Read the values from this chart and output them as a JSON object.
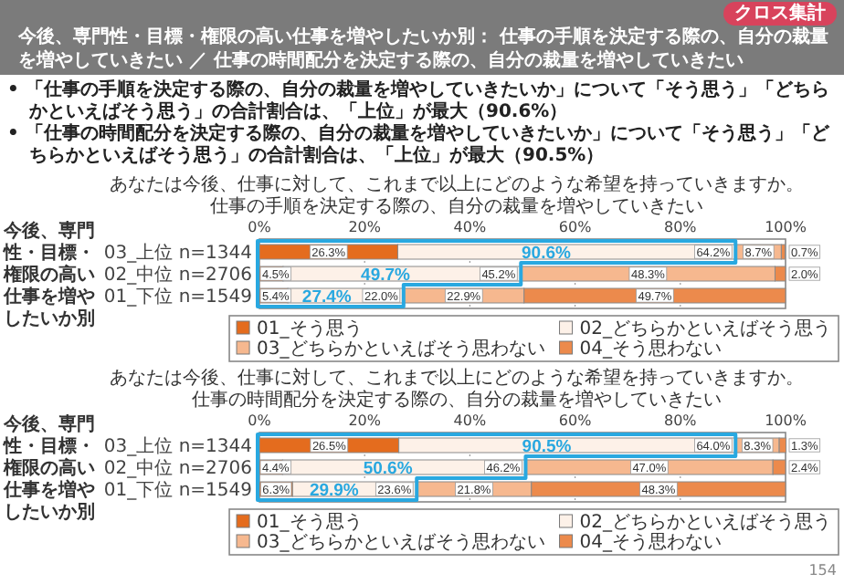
{
  "chart_data": [
    {
      "type": "other",
      "title": "今後、専門性・目標・権限の高い仕事を増やしたいか別： 仕事の手順を決定する際の、自分の裁量を増やしていきたい ／ 仕事の時間配分を決定する際の、自分の裁量を増やしていきたい",
      "annotations": [
        "クロス集計",
        "• 「仕事の手順を決定する際の、自分の裁量を増やしていきたいか」について「そう思う」「どちらかといえばそう思う」の合計割合は、「上位」が最大（90.6%）",
        "• 「仕事の時間配分を決定する際の、自分の裁量を増やしていきたいか」について「そう思う」「どちらかといえばそう思う」の合計割合は、「上位」が最大（90.5%）",
        "154"
      ]
    },
    {
      "type": "bar",
      "orientation": "horizontal",
      "stacked": true,
      "title": "あなたは今後、仕事に対して、これまで以上にどのような希望を持っていきますか。",
      "subtitle": "仕事の手順を決定する際の、自分の裁量を増やしていきたい",
      "ylabel": "今後、専門性・目標・権限の高い仕事を増やしたいか別",
      "categories": [
        "03_上位 n=1344",
        "02_中位 n=2706",
        "01_下位 n=1549"
      ],
      "xlim": [
        0,
        100
      ],
      "xticks": [
        {
          "value": 0,
          "label": "0%"
        },
        {
          "value": 20,
          "label": "20%"
        },
        {
          "value": 40,
          "label": "40%"
        },
        {
          "value": 60,
          "label": "60%"
        },
        {
          "value": 80,
          "label": "80%"
        },
        {
          "value": 100,
          "label": "100%"
        }
      ],
      "grid": "x",
      "legend": "bottom",
      "series": [
        {
          "name": "01_そう思う",
          "color": "#e46c1e",
          "values": [
            26.3,
            4.5,
            5.4
          ],
          "value_labels": [
            "26.3%",
            "4.5%",
            "5.4%"
          ]
        },
        {
          "name": "02_どちらかといえばそう思う",
          "color": "#fdf1e8",
          "values": [
            64.2,
            45.2,
            22.0
          ],
          "value_labels": [
            "64.2%",
            "45.2%",
            "22.0%"
          ]
        },
        {
          "name": "03_どちらかといえばそう思わない",
          "color": "#f6b88f",
          "values": [
            8.7,
            48.3,
            22.9
          ],
          "value_labels": [
            "8.7%",
            "48.3%",
            "22.9%"
          ]
        },
        {
          "name": "04_そう思わない",
          "color": "#ec8a4c",
          "values": [
            0.7,
            2.0,
            49.7
          ],
          "value_labels": [
            "0.7%",
            "2.0%",
            "49.7%"
          ]
        }
      ],
      "annotations": [
        "90.6%",
        "49.7%",
        "27.4%"
      ]
    },
    {
      "type": "bar",
      "orientation": "horizontal",
      "stacked": true,
      "title": "あなたは今後、仕事に対して、これまで以上にどのような希望を持っていきますか。",
      "subtitle": "仕事の時間配分を決定する際の、自分の裁量を増やしていきたい",
      "ylabel": "今後、専門性・目標・権限の高い仕事を増やしたいか別",
      "categories": [
        "03_上位 n=1344",
        "02_中位 n=2706",
        "01_下位 n=1549"
      ],
      "xlim": [
        0,
        100
      ],
      "xticks": [
        {
          "value": 0,
          "label": "0%"
        },
        {
          "value": 20,
          "label": "20%"
        },
        {
          "value": 40,
          "label": "40%"
        },
        {
          "value": 60,
          "label": "60%"
        },
        {
          "value": 80,
          "label": "80%"
        },
        {
          "value": 100,
          "label": "100%"
        }
      ],
      "grid": "x",
      "legend": "bottom",
      "series": [
        {
          "name": "01_そう思う",
          "color": "#e46c1e",
          "values": [
            26.5,
            4.4,
            6.3
          ],
          "value_labels": [
            "26.5%",
            "4.4%",
            "6.3%"
          ]
        },
        {
          "name": "02_どちらかといえばそう思う",
          "color": "#fdf1e8",
          "values": [
            64.0,
            46.2,
            23.6
          ],
          "value_labels": [
            "64.0%",
            "46.2%",
            "23.6%"
          ]
        },
        {
          "name": "03_どちらかといえばそう思わない",
          "color": "#f6b88f",
          "values": [
            8.3,
            47.0,
            21.8
          ],
          "value_labels": [
            "8.3%",
            "47.0%",
            "21.8%"
          ]
        },
        {
          "name": "04_そう思わない",
          "color": "#ec8a4c",
          "values": [
            1.3,
            2.4,
            48.3
          ],
          "value_labels": [
            "1.3%",
            "2.4%",
            "48.3%"
          ]
        }
      ],
      "annotations": [
        "90.5%",
        "50.6%",
        "29.9%"
      ]
    }
  ]
}
